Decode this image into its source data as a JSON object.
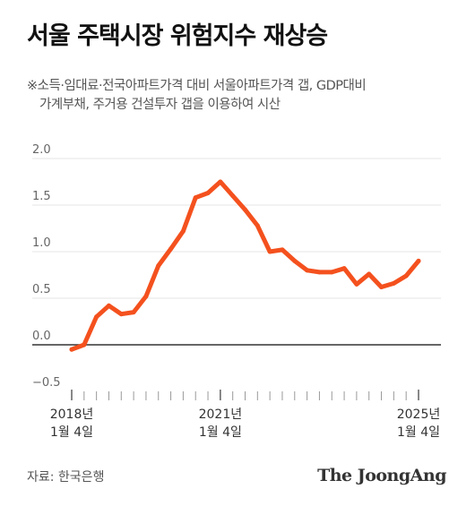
{
  "header": {
    "title": "서울 주택시장 위험지수 재상승",
    "subtitle_line1": "※소득·임대료·전국아파트가격 대비 서울아파트가격 갭, GDP대비",
    "subtitle_line2": "가계부채, 주거용 건설투자 갭을 이용하여 시산"
  },
  "footer": {
    "source": "자료: 한국은행",
    "brand": "The JoongAng"
  },
  "colors": {
    "line": "#f4511e",
    "grid": "#e6e6e6",
    "zero_line": "#333333",
    "text": "#444444"
  },
  "chart_data": {
    "type": "line",
    "title": "서울 주택시장 위험지수 재상승",
    "ylim": [
      -0.5,
      2.0
    ],
    "yticks": [
      {
        "value": 2.0,
        "label": "2.0"
      },
      {
        "value": 1.5,
        "label": "1.5"
      },
      {
        "value": 1.0,
        "label": "1.0"
      },
      {
        "value": 0.5,
        "label": "0.5"
      },
      {
        "value": 0.0,
        "label": "0.0"
      },
      {
        "value": -0.5,
        "label": "−0.5"
      }
    ],
    "xlim": [
      2018.0,
      2025.0
    ],
    "xticks": [
      {
        "value": 2018.0,
        "line1": "2018년",
        "line2": "1월 4일"
      },
      {
        "value": 2021.0,
        "line1": "2021년",
        "line2": "1월 4일"
      },
      {
        "value": 2025.0,
        "line1": "2025년",
        "line2": "1월 4일"
      }
    ],
    "grid": true,
    "series": [
      {
        "x": [
          2018.0,
          2018.25,
          2018.5,
          2018.75,
          2019.0,
          2019.25,
          2019.5,
          2019.75,
          2020.0,
          2020.25,
          2020.5,
          2020.75,
          2021.0,
          2021.25,
          2021.5,
          2021.75,
          2022.0,
          2022.25,
          2022.5,
          2022.75,
          2023.0,
          2023.25,
          2023.5,
          2023.75,
          2024.0,
          2024.25,
          2024.5,
          2024.75,
          2025.0
        ],
        "values": [
          -0.05,
          0.0,
          0.3,
          0.42,
          0.33,
          0.35,
          0.52,
          0.85,
          1.03,
          1.22,
          1.58,
          1.63,
          1.75,
          1.6,
          1.45,
          1.28,
          1.0,
          1.02,
          0.9,
          0.8,
          0.78,
          0.78,
          0.82,
          0.65,
          0.76,
          0.62,
          0.66,
          0.74,
          0.9
        ]
      }
    ]
  }
}
